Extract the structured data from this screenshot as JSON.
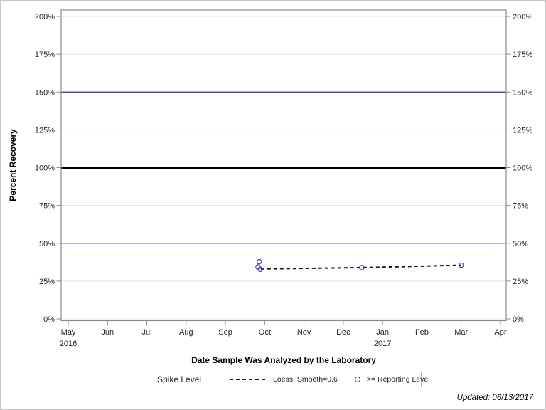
{
  "figure": {
    "footer_updated": "Updated: 06/13/2017"
  },
  "legend": {
    "title": "Spike Level",
    "items": [
      {
        "swatch": "dashed-line",
        "label": "Loess, Smooth=0.6",
        "color": "#141414"
      },
      {
        "swatch": "open-circle",
        "label": ">= Reporting Level",
        "color": "#4646C2"
      }
    ]
  },
  "chart_data": {
    "type": "scatter",
    "title": "",
    "xlabel": "Date Sample Was Analyzed by the Laboratory",
    "ylabel": "Percent Recovery",
    "ylim": [
      0,
      205
    ],
    "grid": true,
    "y_ticks": [
      0,
      25,
      50,
      75,
      100,
      125,
      150,
      175,
      200
    ],
    "y_tick_labels": [
      "0%",
      "25%",
      "50%",
      "75%",
      "100%",
      "125%",
      "150%",
      "175%",
      "200%"
    ],
    "x_tick_labels": [
      "May",
      "Jun",
      "Jul",
      "Aug",
      "Sep",
      "Oct",
      "Nov",
      "Dec",
      "Jan",
      "Feb",
      "Mar",
      "Apr"
    ],
    "x_year_labels": [
      {
        "index": 0,
        "label": "2016"
      },
      {
        "index": 8,
        "label": "2017"
      }
    ],
    "reference_lines": [
      {
        "y": 50,
        "color": "#3333A3",
        "width": 1.2
      },
      {
        "y": 100,
        "color": "#000000",
        "width": 3
      },
      {
        "y": 150,
        "color": "#3333A3",
        "width": 1.2
      }
    ],
    "series": [
      {
        "name": "Loess, Smooth=0.6",
        "type": "line",
        "line_style": "dashed",
        "color": "#141414",
        "x_month": [
          4.9,
          7.47,
          10.0
        ],
        "values": [
          33.0,
          33.9,
          35.5
        ]
      },
      {
        "name": ">= Reporting Level",
        "type": "scatter",
        "marker": "open-circle",
        "color": "#4646C2",
        "points": [
          {
            "x_month": 4.86,
            "approx_date": "2016-09-27",
            "value": 37.8
          },
          {
            "x_month": 4.83,
            "approx_date": "2016-09-26",
            "value": 34.3
          },
          {
            "x_month": 4.89,
            "approx_date": "2016-09-28",
            "value": 32.8
          },
          {
            "x_month": 7.47,
            "approx_date": "2016-12-15",
            "value": 33.9
          },
          {
            "x_month": 10.0,
            "approx_date": "2017-03-01",
            "value": 35.5
          }
        ]
      }
    ],
    "legend_position": "bottom",
    "colors": {
      "grid": "#e4e4e4",
      "frame": "#8a8a8a",
      "tick": "#8a8a8a",
      "text": "#262626"
    }
  }
}
